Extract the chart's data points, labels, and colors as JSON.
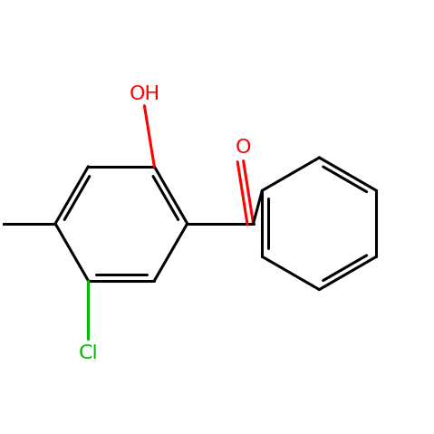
{
  "bg_color": "#ffffff",
  "bond_color": "#000000",
  "bond_lw": 2.2,
  "atom_colors": {
    "O": "#ff0000",
    "Cl": "#00bb00",
    "C": "#000000"
  },
  "label_fontsize": 16,
  "figsize": [
    4.79,
    4.79
  ],
  "dpi": 100,
  "xlim": [
    -0.5,
    6.0
  ],
  "ylim": [
    -3.2,
    2.8
  ]
}
